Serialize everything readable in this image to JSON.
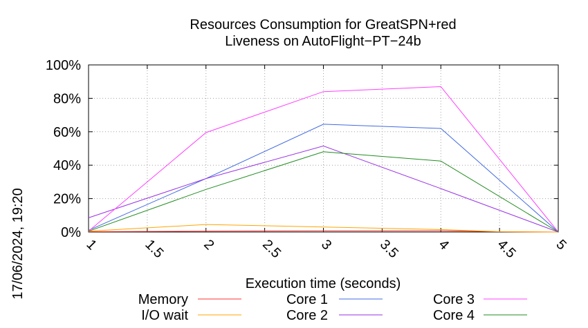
{
  "chart_data": {
    "type": "line",
    "title": [
      "Resources Consumption for GreatSPN+red",
      "Liveness on AutoFlight−PT−24b"
    ],
    "xlabel": "Execution time (seconds)",
    "ylabel": "",
    "side_label": "17/06/2024, 19:20",
    "xlim": [
      1,
      5
    ],
    "ylim": [
      0,
      100
    ],
    "x_ticks": [
      "1",
      "1.5",
      "2",
      "2.5",
      "3",
      "3.5",
      "4",
      "4.5",
      "5"
    ],
    "y_ticks": [
      "0%",
      "20%",
      "40%",
      "60%",
      "80%",
      "100%"
    ],
    "grid": true,
    "legend_position": "bottom",
    "series": [
      {
        "name": "Memory",
        "color": "#ff3030",
        "x": [
          1,
          2,
          3,
          4,
          4.5,
          5
        ],
        "y": [
          0.2,
          0.5,
          0.7,
          0.8,
          0.2,
          0
        ]
      },
      {
        "name": "I/O wait",
        "color": "#ffa500",
        "x": [
          1,
          2,
          3,
          4,
          4.5,
          5
        ],
        "y": [
          0.5,
          4.5,
          3,
          1.5,
          0.2,
          0
        ]
      },
      {
        "name": "Core 1",
        "color": "#4169e1",
        "x": [
          1,
          2,
          3,
          4,
          5
        ],
        "y": [
          1,
          32,
          64.5,
          62,
          0
        ]
      },
      {
        "name": "Core 2",
        "color": "#9932e6",
        "x": [
          1,
          2,
          3,
          4,
          5
        ],
        "y": [
          8.5,
          32,
          51.5,
          26,
          0
        ]
      },
      {
        "name": "Core 3",
        "color": "#ff40ff",
        "x": [
          1,
          2,
          3,
          4,
          5
        ],
        "y": [
          0.5,
          59.5,
          84,
          87,
          0
        ]
      },
      {
        "name": "Core 4",
        "color": "#208b20",
        "x": [
          1,
          2,
          3,
          4,
          5
        ],
        "y": [
          0.5,
          25.5,
          48,
          42.5,
          0
        ]
      }
    ]
  }
}
